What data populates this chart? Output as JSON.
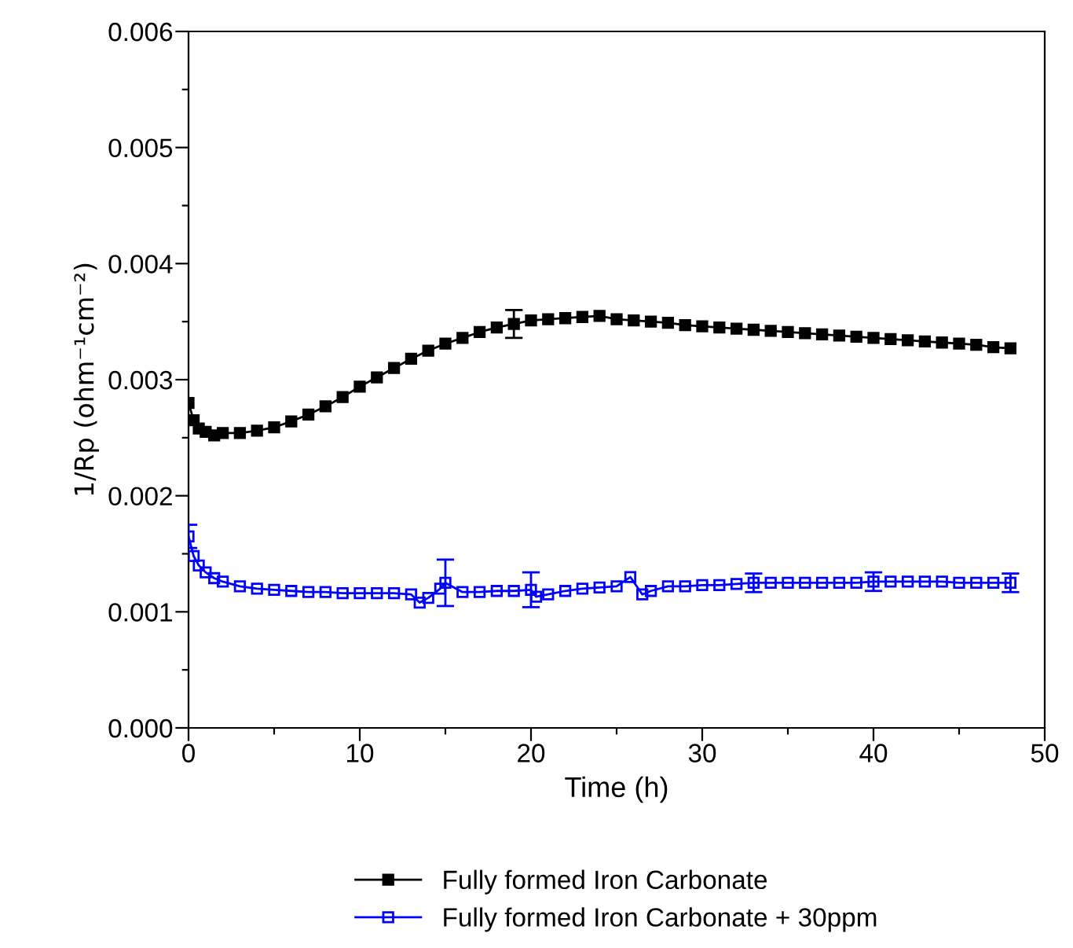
{
  "chart_data": {
    "type": "line",
    "xlabel": "Time (h)",
    "ylabel": "1/Rp (ohm⁻¹cm⁻²)",
    "xlim": [
      0,
      50
    ],
    "ylim": [
      0,
      0.006
    ],
    "xticks": [
      0,
      {
        "value": 5,
        "label": null
      },
      10,
      {
        "value": 15,
        "label": null
      },
      20,
      {
        "value": 25,
        "label": null
      },
      30,
      {
        "value": 35,
        "label": null
      },
      40,
      {
        "value": 45,
        "label": null
      },
      50
    ],
    "yticks": [
      {
        "value": 0,
        "label": "0.000"
      },
      {
        "value": 0.0005,
        "label": null
      },
      {
        "value": 0.001,
        "label": "0.001"
      },
      {
        "value": 0.0015,
        "label": null
      },
      {
        "value": 0.002,
        "label": "0.002"
      },
      {
        "value": 0.0025,
        "label": null
      },
      {
        "value": 0.003,
        "label": "0.003"
      },
      {
        "value": 0.0035,
        "label": null
      },
      {
        "value": 0.004,
        "label": "0.004"
      },
      {
        "value": 0.0045,
        "label": null
      },
      {
        "value": 0.005,
        "label": "0.005"
      },
      {
        "value": 0.0055,
        "label": null
      },
      {
        "value": 0.006,
        "label": "0.006"
      }
    ],
    "marker": "square",
    "line_style": "solid",
    "grid": false,
    "legend": "bottom",
    "series": [
      {
        "name": "Fully formed Iron Carbonate",
        "color": "#000000",
        "x": [
          0,
          0.3,
          0.6,
          1,
          1.5,
          2,
          3,
          4,
          5,
          6,
          7,
          8,
          9,
          10,
          11,
          12,
          13,
          14,
          15,
          16,
          17,
          18,
          19,
          20,
          21,
          22,
          23,
          24,
          25,
          26,
          27,
          28,
          29,
          30,
          31,
          32,
          33,
          34,
          35,
          36,
          37,
          38,
          39,
          40,
          41,
          42,
          43,
          44,
          45,
          46,
          47,
          48
        ],
        "values": [
          0.0028,
          0.00265,
          0.00258,
          0.00255,
          0.00252,
          0.00254,
          0.00254,
          0.00256,
          0.00259,
          0.00264,
          0.0027,
          0.00277,
          0.00285,
          0.00294,
          0.00302,
          0.0031,
          0.00318,
          0.00325,
          0.00331,
          0.00336,
          0.00341,
          0.00345,
          0.00348,
          0.00351,
          0.00352,
          0.00353,
          0.00354,
          0.00355,
          0.00352,
          0.00351,
          0.0035,
          0.00349,
          0.00347,
          0.00346,
          0.00345,
          0.00344,
          0.00343,
          0.00342,
          0.00341,
          0.0034,
          0.00339,
          0.00338,
          0.00337,
          0.00336,
          0.00335,
          0.00334,
          0.00333,
          0.00332,
          0.00331,
          0.0033,
          0.00328,
          0.00327
        ],
        "errors": [
          null,
          null,
          null,
          null,
          null,
          null,
          null,
          null,
          null,
          null,
          null,
          null,
          null,
          null,
          null,
          null,
          null,
          null,
          null,
          null,
          null,
          null,
          0.00012,
          null,
          null,
          null,
          null,
          null,
          null,
          null,
          null,
          null,
          null,
          null,
          null,
          null,
          null,
          null,
          null,
          null,
          null,
          null,
          null,
          null,
          null,
          null,
          null,
          null,
          null,
          null,
          null,
          null
        ]
      },
      {
        "name": "Fully formed Iron Carbonate + 30ppm",
        "color": "#0000ff",
        "x": [
          0,
          0.3,
          0.6,
          1,
          1.5,
          2,
          3,
          4,
          5,
          6,
          7,
          8,
          9,
          10,
          11,
          12,
          13,
          13.5,
          14,
          14.7,
          15,
          16,
          17,
          18,
          19,
          20,
          20.3,
          21,
          22,
          23,
          24,
          25,
          25.8,
          26.5,
          27,
          28,
          29,
          30,
          31,
          32,
          33,
          34,
          35,
          36,
          37,
          38,
          39,
          40,
          41,
          42,
          43,
          44,
          45,
          46,
          47,
          48
        ],
        "values": [
          0.00165,
          0.00148,
          0.0014,
          0.00134,
          0.00129,
          0.00126,
          0.00122,
          0.0012,
          0.00119,
          0.00118,
          0.00117,
          0.00117,
          0.00116,
          0.00116,
          0.00116,
          0.00116,
          0.00115,
          0.00108,
          0.00112,
          0.0012,
          0.00125,
          0.00117,
          0.00117,
          0.00118,
          0.00118,
          0.00119,
          0.00113,
          0.00115,
          0.00118,
          0.0012,
          0.00121,
          0.00122,
          0.0013,
          0.00115,
          0.00118,
          0.00122,
          0.00122,
          0.00123,
          0.00123,
          0.00124,
          0.00125,
          0.00125,
          0.00125,
          0.00125,
          0.00125,
          0.00125,
          0.00125,
          0.00126,
          0.00126,
          0.00126,
          0.00126,
          0.00126,
          0.00125,
          0.00125,
          0.00125,
          0.00125
        ],
        "errors": [
          0.0001,
          null,
          null,
          null,
          null,
          null,
          null,
          null,
          null,
          null,
          null,
          null,
          null,
          null,
          null,
          null,
          null,
          null,
          null,
          null,
          0.0002,
          null,
          null,
          null,
          null,
          0.00015,
          null,
          null,
          null,
          null,
          null,
          null,
          null,
          null,
          null,
          null,
          null,
          null,
          null,
          null,
          8e-05,
          null,
          null,
          null,
          null,
          null,
          null,
          8e-05,
          null,
          null,
          null,
          null,
          null,
          null,
          null,
          8e-05
        ]
      }
    ]
  }
}
